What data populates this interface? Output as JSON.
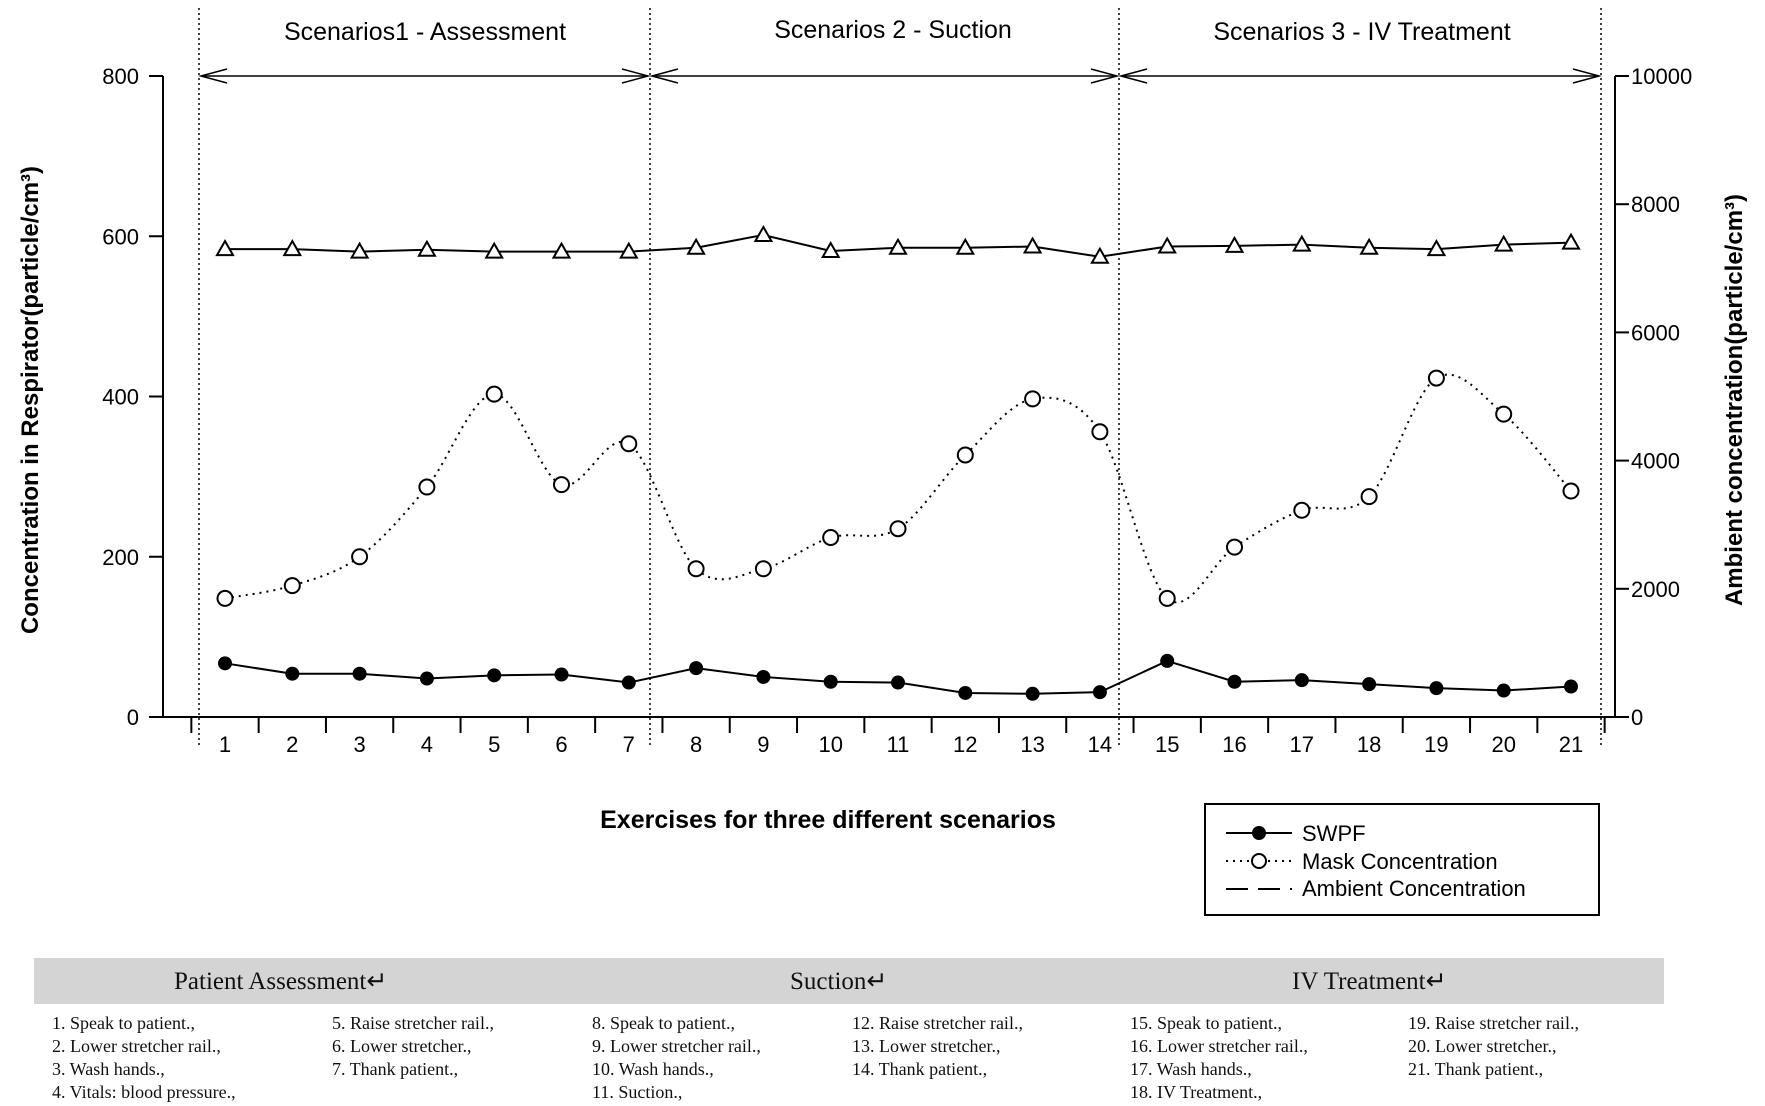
{
  "chart_data": {
    "type": "line",
    "scenarios": [
      "Scenarios1 - Assessment",
      "Scenarios 2 - Suction",
      "Scenarios 3 - IV Treatment"
    ],
    "x": [
      1,
      2,
      3,
      4,
      5,
      6,
      7,
      8,
      9,
      10,
      11,
      12,
      13,
      14,
      15,
      16,
      17,
      18,
      19,
      20,
      21
    ],
    "xlabel": "Exercises for three different scenarios",
    "ylabel": "Concentration in Respirator(particle/cm³)",
    "y2label": "Ambient concentration(particle/cm³)",
    "ylim": [
      0,
      800
    ],
    "y2lim": [
      0,
      10000
    ],
    "yticks": [
      0,
      200,
      400,
      600,
      800
    ],
    "y2ticks": [
      0,
      2000,
      4000,
      6000,
      8000,
      10000
    ],
    "series": [
      {
        "name": "SWPF",
        "axis": "left",
        "marker": "filled-circle",
        "line": "solid",
        "values": [
          67,
          54,
          54,
          48,
          52,
          53,
          43,
          61,
          50,
          44,
          43,
          30,
          29,
          31,
          70,
          44,
          46,
          41,
          36,
          33,
          38
        ]
      },
      {
        "name": "Mask Concentration",
        "axis": "left",
        "marker": "open-circle",
        "line": "dotted",
        "values": [
          148,
          164,
          200,
          287,
          403,
          290,
          341,
          185,
          185,
          224,
          235,
          327,
          397,
          356,
          148,
          212,
          258,
          275,
          423,
          378,
          282
        ]
      },
      {
        "name": "Ambient Concentration",
        "axis": "right",
        "marker": "open-triangle",
        "line": "solid",
        "values": [
          7300,
          7300,
          7260,
          7290,
          7260,
          7260,
          7260,
          7320,
          7520,
          7270,
          7320,
          7320,
          7340,
          7180,
          7340,
          7350,
          7370,
          7320,
          7300,
          7370,
          7400
        ]
      }
    ],
    "legend_position": "bottom-right",
    "grid": false
  },
  "table": {
    "sections": [
      {
        "title": "Patient Assessment↵",
        "col1": [
          "1. Speak to patient.,",
          "2. Lower stretcher rail.,",
          "3. Wash hands.,",
          "4. Vitals: blood pressure.,"
        ],
        "col2": [
          "5. Raise stretcher rail.,",
          "6. Lower stretcher.,",
          "7. Thank patient.,"
        ]
      },
      {
        "title": "Suction↵",
        "col1": [
          "8. Speak to patient.,",
          "9. Lower stretcher rail.,",
          "10. Wash hands.,",
          "11. Suction.,"
        ],
        "col2": [
          "12. Raise stretcher rail.,",
          "13. Lower stretcher.,",
          "14. Thank patient.,"
        ]
      },
      {
        "title": "IV Treatment↵",
        "col1": [
          "15. Speak to patient.,",
          "16. Lower stretcher rail.,",
          "17. Wash hands.,",
          "18. IV Treatment.,"
        ],
        "col2": [
          "19. Raise stretcher rail.,",
          "20. Lower stretcher.,",
          "21. Thank patient.,"
        ]
      }
    ]
  }
}
